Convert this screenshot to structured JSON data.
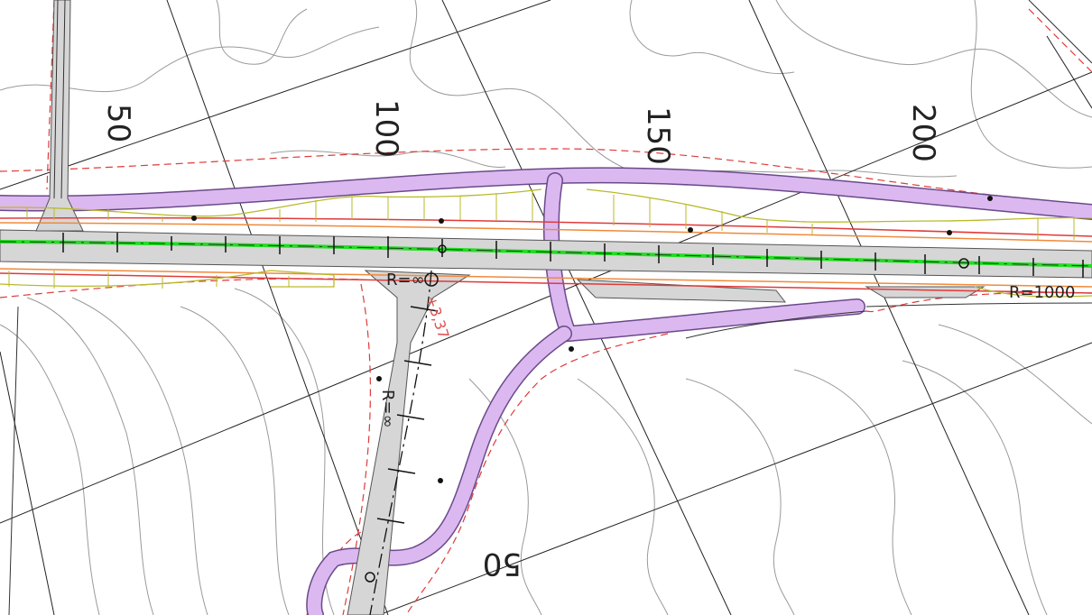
{
  "drawing": {
    "station_labels": [
      "50",
      "100",
      "150",
      "200"
    ],
    "side_road_station_label": "50",
    "radius_labels": {
      "main_crossing": "R=∞",
      "side_road": "R=∞",
      "main_right": "R=1000"
    },
    "red_annotation": "+3,37",
    "colors": {
      "background": "#ffffff",
      "contour": "#9a9a9a",
      "road_surface": "#d6d6d6",
      "centerline": "#22dd22",
      "bike_path": "#dcb8f0",
      "slope_yellow": "#b9b92a",
      "orange_line": "#f08a3a",
      "red_boundary": "#e03a3a",
      "grid_line": "#222222"
    }
  }
}
